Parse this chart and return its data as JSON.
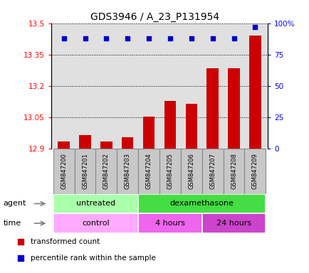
{
  "title": "GDS3946 / A_23_P131954",
  "samples": [
    "GSM847200",
    "GSM847201",
    "GSM847202",
    "GSM847203",
    "GSM847204",
    "GSM847205",
    "GSM847206",
    "GSM847207",
    "GSM847208",
    "GSM847209"
  ],
  "transformed_counts": [
    12.935,
    12.965,
    12.935,
    12.955,
    13.055,
    13.13,
    13.115,
    13.285,
    13.285,
    13.44
  ],
  "percentile_values": [
    88,
    88,
    88,
    88,
    88,
    88,
    88,
    88,
    88,
    97
  ],
  "ylim_left": [
    12.9,
    13.5
  ],
  "ylim_right": [
    0,
    100
  ],
  "yticks_left": [
    12.9,
    13.05,
    13.2,
    13.35,
    13.5
  ],
  "ytick_labels_left": [
    "12.9",
    "13.05",
    "13.2",
    "13.35",
    "13.5"
  ],
  "yticks_right": [
    0,
    25,
    50,
    75,
    100
  ],
  "ytick_labels_right": [
    "0",
    "25",
    "50",
    "75",
    "100%"
  ],
  "bar_color": "#cc0000",
  "dot_color": "#0000cc",
  "bar_bottom": 12.9,
  "agent_groups": [
    {
      "label": "untreated",
      "start": 0,
      "end": 4,
      "color": "#aaffaa"
    },
    {
      "label": "dexamethasone",
      "start": 4,
      "end": 10,
      "color": "#44dd44"
    }
  ],
  "time_groups": [
    {
      "label": "control",
      "start": 0,
      "end": 4,
      "color": "#ffaaff"
    },
    {
      "label": "4 hours",
      "start": 4,
      "end": 7,
      "color": "#ee66ee"
    },
    {
      "label": "24 hours",
      "start": 7,
      "end": 10,
      "color": "#cc44cc"
    }
  ],
  "legend_items": [
    {
      "label": "transformed count",
      "color": "#cc0000",
      "marker": "s"
    },
    {
      "label": "percentile rank within the sample",
      "color": "#0000cc",
      "marker": "s"
    }
  ],
  "title_fontsize": 10,
  "tick_fontsize": 7.5,
  "dot_size": 25,
  "plot_bg_color": "#e0e0e0",
  "sample_box_color": "#c8c8c8",
  "sample_box_edge": "#888888"
}
